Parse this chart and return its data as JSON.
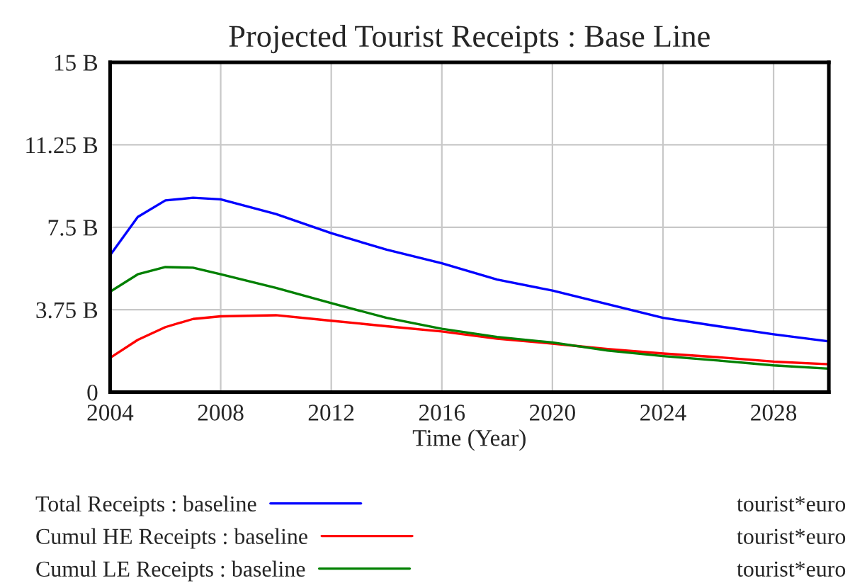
{
  "chart_data": {
    "type": "line",
    "title": "Projected Tourist Receipts : Base Line",
    "xlabel": "Time (Year)",
    "x": [
      2004,
      2005,
      2006,
      2007,
      2008,
      2010,
      2012,
      2014,
      2016,
      2018,
      2020,
      2022,
      2024,
      2026,
      2028,
      2030
    ],
    "series": [
      {
        "name": "Total Receipts : baseline",
        "color": "#0000ff",
        "values": [
          6.23,
          7.97,
          8.72,
          8.84,
          8.77,
          8.1,
          7.23,
          6.48,
          5.86,
          5.12,
          4.62,
          4.0,
          3.38,
          3.0,
          2.63,
          2.31
        ]
      },
      {
        "name": "Cumul HE Receipts : baseline",
        "color": "#ff0000",
        "values": [
          1.56,
          2.38,
          2.96,
          3.33,
          3.45,
          3.5,
          3.25,
          3.0,
          2.76,
          2.43,
          2.21,
          1.96,
          1.76,
          1.59,
          1.39,
          1.27
        ]
      },
      {
        "name": "Cumul LE Receipts : baseline",
        "color": "#008000",
        "values": [
          4.57,
          5.36,
          5.69,
          5.66,
          5.36,
          4.74,
          4.05,
          3.38,
          2.88,
          2.51,
          2.26,
          1.89,
          1.64,
          1.44,
          1.22,
          1.07
        ]
      }
    ],
    "xlim": [
      2004,
      2030
    ],
    "xticks": [
      2004,
      2008,
      2012,
      2016,
      2020,
      2024,
      2028
    ],
    "ylim": [
      0,
      15
    ],
    "yticks": [
      0,
      {
        "value": 3.75,
        "label": "3.75 B"
      },
      {
        "value": 7.5,
        "label": "7.5 B"
      },
      {
        "value": 11.25,
        "label": "11.25 B"
      },
      {
        "value": 15,
        "label": "15 B"
      }
    ],
    "grid": true,
    "legend": "bottom",
    "annotations": [
      "tourist*euro",
      "tourist*euro",
      "tourist*euro"
    ]
  }
}
